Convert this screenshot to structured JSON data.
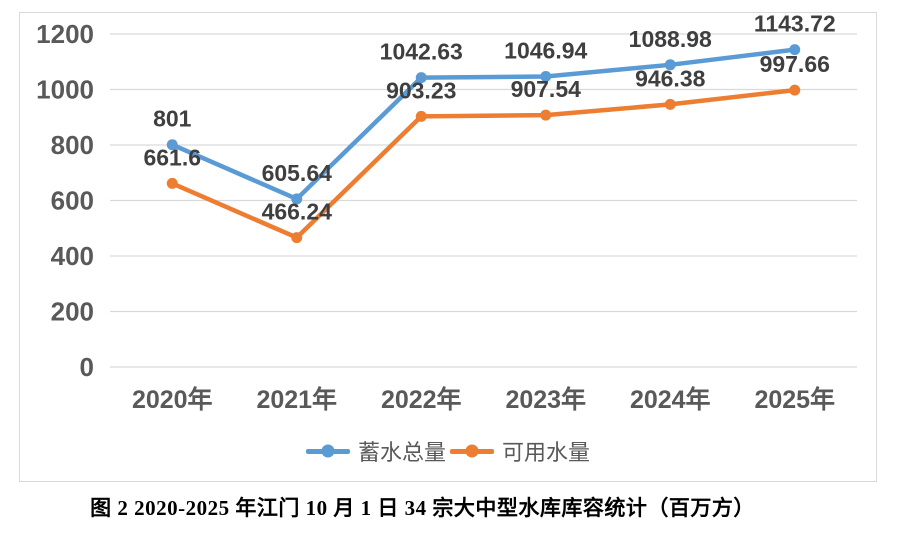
{
  "chart_data": {
    "type": "line",
    "categories": [
      "2020年",
      "2021年",
      "2022年",
      "2023年",
      "2024年",
      "2025年"
    ],
    "series": [
      {
        "name": "蓄水总量",
        "color": "#5B9BD5",
        "values": [
          801,
          605.64,
          1042.63,
          1046.94,
          1088.98,
          1143.72
        ],
        "point_labels": [
          "801",
          "605.64",
          "1042.63",
          "1046.94",
          "1088.98",
          "1143.72"
        ]
      },
      {
        "name": "可用水量",
        "color": "#ED7D31",
        "values": [
          661.6,
          466.24,
          903.23,
          907.54,
          946.38,
          997.66
        ],
        "point_labels": [
          "661.6",
          "466.24",
          "903.23",
          "907.54",
          "946.38",
          "997.66"
        ]
      }
    ],
    "ylim": [
      0,
      1200
    ],
    "yticks": [
      0,
      200,
      400,
      600,
      800,
      1000,
      1200
    ],
    "grid": true,
    "legend_position": "bottom",
    "title": "",
    "xlabel": "",
    "ylabel": ""
  },
  "caption": "图 2  2020-2025 年江门 10 月 1 日 34 宗大中型水库库容统计（百万方）",
  "colors": {
    "gridline": "#D9D9D9",
    "chart_border": "#D9D9D9",
    "axis_label": "#595959",
    "data_label": "#3F3F3F",
    "legend_text": "#595959",
    "caption_text": "#000000",
    "background": "#FFFFFF"
  }
}
